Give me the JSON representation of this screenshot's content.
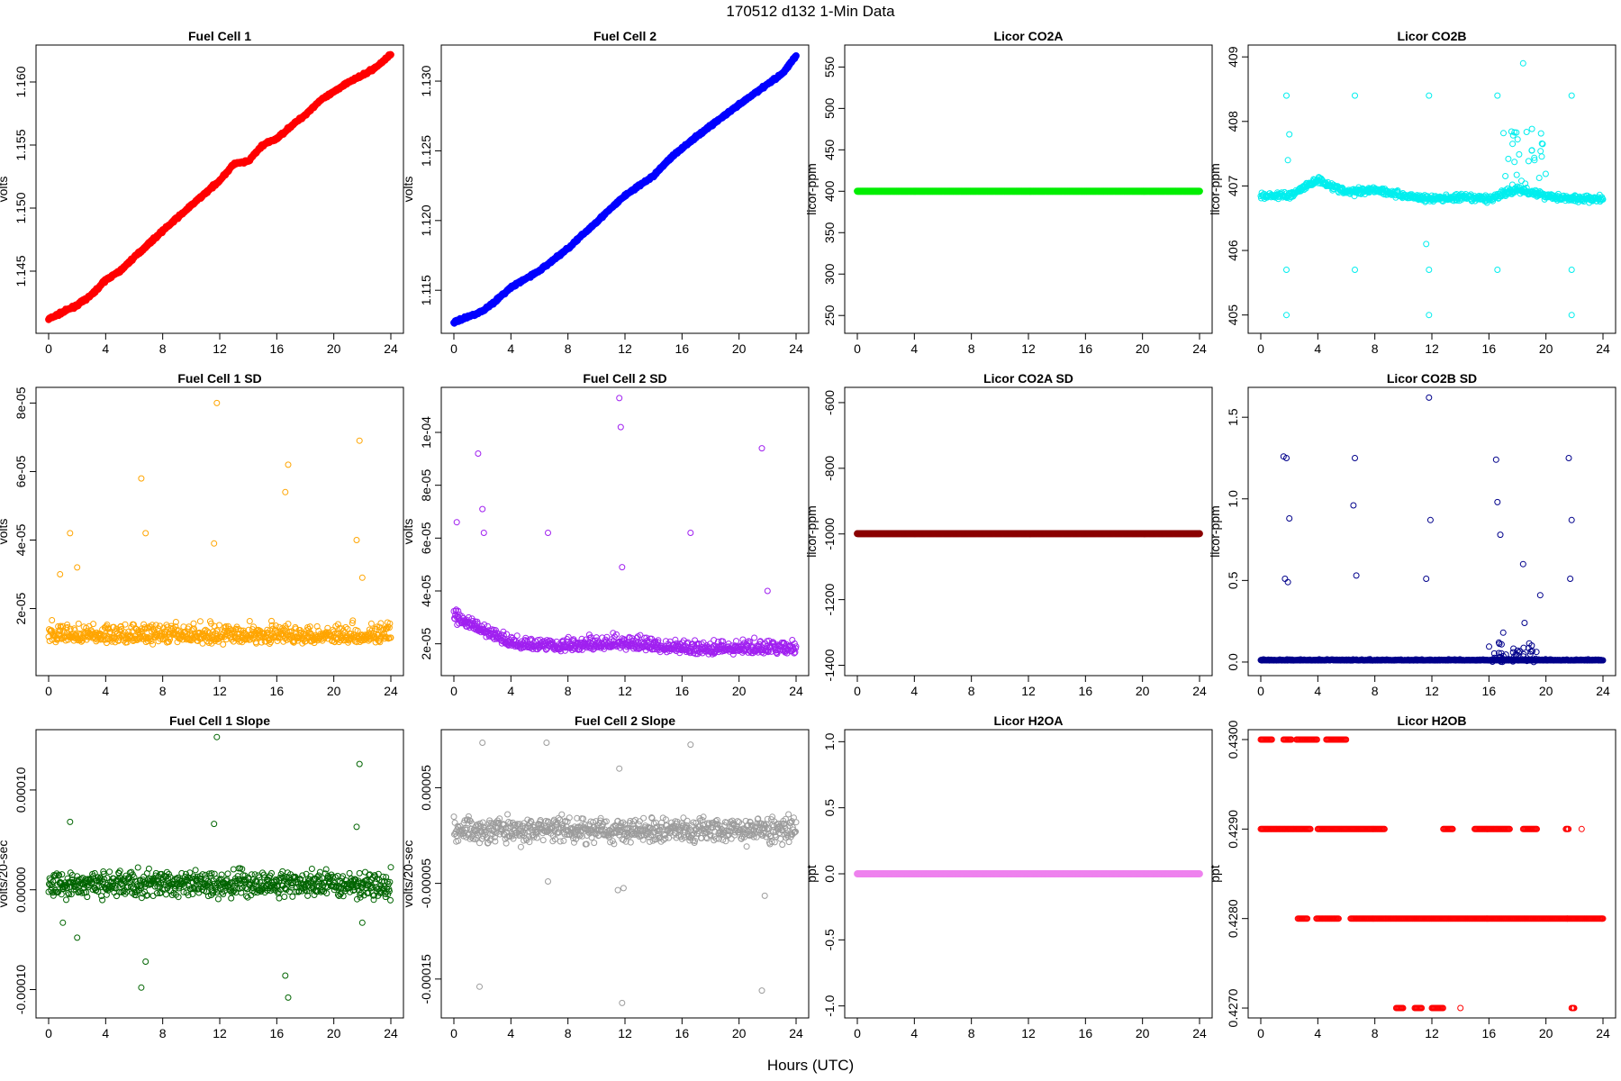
{
  "suptitle": "170512   d132   1-Min Data",
  "xlabel": "Hours (UTC)",
  "chart_data": [
    {
      "type": "scatter",
      "title": "Fuel Cell 1",
      "ylabel": "volts",
      "color": "#ff0000",
      "marker": "filled",
      "xlim": [
        0,
        24
      ],
      "ylim": [
        1.1405,
        1.1625
      ],
      "xticks": [
        0,
        4,
        8,
        12,
        16,
        20,
        24
      ],
      "yticks": [
        1.145,
        1.15,
        1.155,
        1.16
      ],
      "ytick_labels": [
        "1.145",
        "1.150",
        "1.155",
        "1.160"
      ],
      "x": [
        0,
        2,
        3,
        4,
        5,
        6,
        8,
        10,
        12,
        13,
        14,
        15,
        16,
        17,
        18,
        19,
        20,
        21,
        22,
        23,
        24
      ],
      "y": [
        1.1412,
        1.1423,
        1.1431,
        1.1443,
        1.145,
        1.1461,
        1.1482,
        1.1502,
        1.1522,
        1.1535,
        1.1537,
        1.155,
        1.1555,
        1.1565,
        1.1574,
        1.1585,
        1.1592,
        1.16,
        1.1605,
        1.1612,
        1.1622
      ]
    },
    {
      "type": "scatter",
      "title": "Fuel Cell 2",
      "ylabel": "volts",
      "color": "#0000ff",
      "marker": "filled",
      "xlim": [
        0,
        24
      ],
      "ylim": [
        1.1123,
        1.1322
      ],
      "xticks": [
        0,
        4,
        8,
        12,
        16,
        20,
        24
      ],
      "yticks": [
        1.115,
        1.12,
        1.125,
        1.13
      ],
      "ytick_labels": [
        "1.115",
        "1.120",
        "1.125",
        "1.130"
      ],
      "x": [
        0,
        2,
        3,
        4,
        6,
        8,
        10,
        12,
        14,
        15,
        16,
        18,
        20,
        22,
        23,
        24
      ],
      "y": [
        1.1127,
        1.1135,
        1.1143,
        1.1152,
        1.1164,
        1.118,
        1.1199,
        1.1218,
        1.1232,
        1.1243,
        1.1252,
        1.1268,
        1.1283,
        1.1298,
        1.1305,
        1.1318
      ]
    },
    {
      "type": "scatter",
      "title": "Licor CO2A",
      "ylabel": "licor-ppm",
      "color": "#00ee00",
      "marker": "filled",
      "xlim": [
        0,
        24
      ],
      "ylim": [
        235,
        570
      ],
      "xticks": [
        0,
        4,
        8,
        12,
        16,
        20,
        24
      ],
      "yticks": [
        250,
        300,
        350,
        400,
        450,
        500,
        550
      ],
      "ytick_labels": [
        "250",
        "300",
        "350",
        "400",
        "450",
        "500",
        "550"
      ],
      "x": [
        0,
        24
      ],
      "y": [
        400,
        400
      ]
    },
    {
      "type": "scatter",
      "title": "Licor CO2B",
      "ylabel": "licor-ppm",
      "color": "#00eeee",
      "marker": "open",
      "xlim": [
        0,
        24
      ],
      "ylim": [
        404.8,
        409.1
      ],
      "xticks": [
        0,
        4,
        8,
        12,
        16,
        20,
        24
      ],
      "yticks": [
        405,
        406,
        407,
        408,
        409
      ],
      "ytick_labels": [
        "405",
        "406",
        "407",
        "408",
        "409"
      ],
      "x": [
        0,
        2,
        4,
        6,
        8,
        10,
        12,
        14,
        16,
        18,
        20,
        22,
        24
      ],
      "y": [
        406.85,
        406.85,
        407.1,
        406.9,
        406.95,
        406.85,
        406.8,
        406.82,
        406.8,
        406.95,
        406.85,
        406.8,
        406.8
      ],
      "outliers": {
        "x": [
          1.8,
          1.8,
          1.8,
          6.6,
          6.6,
          11.8,
          11.8,
          11.8,
          16.6,
          16.6,
          18.4,
          21.8,
          21.8,
          21.8,
          1.9,
          2.0,
          11.6,
          19.2
        ],
        "y": [
          408.4,
          405.7,
          405.0,
          408.4,
          405.7,
          408.4,
          405.7,
          405.0,
          408.4,
          405.7,
          408.9,
          408.4,
          405.7,
          405.0,
          407.4,
          407.8,
          406.1,
          407.4
        ]
      }
    },
    {
      "type": "scatter",
      "title": "Fuel Cell 1 SD",
      "ylabel": "volts",
      "color": "#ffa500",
      "marker": "open",
      "xlim": [
        0,
        24
      ],
      "ylim": [
        2e-06,
        8.3e-05
      ],
      "xticks": [
        0,
        4,
        8,
        12,
        16,
        20,
        24
      ],
      "yticks": [
        2e-05,
        4e-05,
        6e-05,
        8e-05
      ],
      "ytick_labels": [
        "2e-05",
        "4e-05",
        "6e-05",
        "8e-05"
      ],
      "x": [
        0,
        24
      ],
      "y": [
        1.2e-05,
        1.2e-05
      ],
      "outliers": {
        "x": [
          0.8,
          1.5,
          2.0,
          6.5,
          6.8,
          11.6,
          11.8,
          16.6,
          16.8,
          21.6,
          21.8,
          22.0
        ],
        "y": [
          3e-05,
          4.2e-05,
          3.2e-05,
          5.8e-05,
          4.2e-05,
          3.9e-05,
          8e-05,
          5.4e-05,
          6.2e-05,
          4e-05,
          6.9e-05,
          2.9e-05
        ]
      }
    },
    {
      "type": "scatter",
      "title": "Fuel Cell 2 SD",
      "ylabel": "volts",
      "color": "#a020f0",
      "marker": "open",
      "xlim": [
        0,
        24
      ],
      "ylim": [
        1e-05,
        0.000115
      ],
      "xticks": [
        0,
        4,
        8,
        12,
        16,
        20,
        24
      ],
      "yticks": [
        2e-05,
        4e-05,
        6e-05,
        8e-05,
        0.0001
      ],
      "ytick_labels": [
        "2e-05",
        "4e-05",
        "6e-05",
        "8e-05",
        "1e-04"
      ],
      "x": [
        0,
        2,
        4,
        8,
        12,
        16,
        20,
        24
      ],
      "y": [
        3e-05,
        2.5e-05,
        2e-05,
        1.9e-05,
        2e-05,
        1.8e-05,
        1.8e-05,
        1.8e-05
      ],
      "outliers": {
        "x": [
          0.2,
          1.7,
          2.0,
          2.1,
          6.6,
          11.6,
          11.7,
          11.8,
          16.6,
          21.6,
          22.0
        ],
        "y": [
          6.6e-05,
          9.2e-05,
          7.1e-05,
          6.2e-05,
          6.2e-05,
          0.000113,
          0.000102,
          4.9e-05,
          6.2e-05,
          9.4e-05,
          4e-05
        ]
      }
    },
    {
      "type": "scatter",
      "title": "Licor CO2A SD",
      "ylabel": "licor-ppm",
      "color": "#8b0000",
      "marker": "filled",
      "xlim": [
        0,
        24
      ],
      "ylim": [
        -1415,
        -570
      ],
      "xticks": [
        0,
        4,
        8,
        12,
        16,
        20,
        24
      ],
      "yticks": [
        -1400,
        -1200,
        -1000,
        -800,
        -600
      ],
      "ytick_labels": [
        "-1400",
        "-1200",
        "-1000",
        "-800",
        "-600"
      ],
      "x": [
        0,
        24
      ],
      "y": [
        -999,
        -999
      ]
    },
    {
      "type": "scatter",
      "title": "Licor CO2B SD",
      "ylabel": "licor-ppm",
      "color": "#00008b",
      "marker": "open",
      "xlim": [
        0,
        24
      ],
      "ylim": [
        -0.05,
        1.65
      ],
      "xticks": [
        0,
        4,
        8,
        12,
        16,
        20,
        24
      ],
      "yticks": [
        0.0,
        0.5,
        1.0,
        1.5
      ],
      "ytick_labels": [
        "0.0",
        "0.5",
        "1.0",
        "1.5"
      ],
      "x": [
        0,
        24
      ],
      "y": [
        0.01,
        0.01
      ],
      "outliers": {
        "x": [
          1.6,
          1.8,
          2.0,
          1.7,
          1.9,
          6.6,
          6.5,
          6.7,
          11.8,
          11.9,
          11.6,
          16.5,
          16.6,
          16.8,
          18.4,
          18.5,
          19.6,
          21.6,
          21.8,
          21.7,
          17.0
        ],
        "y": [
          1.26,
          1.25,
          0.88,
          0.51,
          0.49,
          1.25,
          0.96,
          0.53,
          1.62,
          0.87,
          0.51,
          1.24,
          0.98,
          0.78,
          0.6,
          0.24,
          0.41,
          1.25,
          0.87,
          0.51,
          0.18
        ]
      }
    },
    {
      "type": "scatter",
      "title": "Fuel Cell 1 Slope",
      "ylabel": "volts/20-sec",
      "color": "#006400",
      "marker": "open",
      "xlim": [
        0,
        24
      ],
      "ylim": [
        -0.000123,
        0.000155
      ],
      "xticks": [
        0,
        4,
        8,
        12,
        16,
        20,
        24
      ],
      "yticks": [
        -0.0001,
        0.0,
        0.0001
      ],
      "ytick_labels": [
        "-0.00010",
        "0.00000",
        "0.00010"
      ],
      "x": [
        0,
        24
      ],
      "y": [
        5.8e-06,
        5.8e-06
      ],
      "outliers": {
        "x": [
          1.5,
          2.0,
          6.5,
          6.8,
          11.6,
          11.8,
          16.6,
          16.8,
          21.6,
          21.8,
          22.0,
          1.0
        ],
        "y": [
          6.8e-05,
          -4.8e-05,
          -9.8e-05,
          -7.2e-05,
          6.6e-05,
          0.000153,
          -8.6e-05,
          -0.000108,
          6.3e-05,
          0.000126,
          -3.3e-05,
          -3.3e-05
        ]
      }
    },
    {
      "type": "scatter",
      "title": "Fuel Cell 2 Slope",
      "ylabel": "volts/20-sec",
      "color": "#9c9c9c",
      "marker": "open",
      "xlim": [
        0,
        24
      ],
      "ylim": [
        -0.000185,
        0.000105
      ],
      "xticks": [
        0,
        4,
        8,
        12,
        16,
        20,
        24
      ],
      "yticks": [
        -0.00015,
        -5e-05,
        5e-05
      ],
      "ytick_labels": [
        "-0.00015",
        "-0.00005",
        "0.00005"
      ],
      "x": [
        0,
        24
      ],
      "y": [
        5.8e-06,
        5.8e-06
      ],
      "outliers": {
        "x": [
          1.8,
          2.0,
          6.5,
          6.6,
          11.6,
          11.8,
          11.9,
          16.6,
          21.6,
          21.8,
          11.5
        ],
        "y": [
          -0.000158,
          9.7e-05,
          9.7e-05,
          -4.8e-05,
          7e-05,
          -0.000175,
          -5.5e-05,
          9.5e-05,
          -0.000162,
          -6.3e-05,
          -5.7e-05
        ]
      }
    },
    {
      "type": "scatter",
      "title": "Licor H2OA",
      "ylabel": "ppt",
      "color": "#ee82ee",
      "marker": "filled",
      "xlim": [
        0,
        24
      ],
      "ylim": [
        -1.05,
        1.05
      ],
      "xticks": [
        0,
        4,
        8,
        12,
        16,
        20,
        24
      ],
      "yticks": [
        -1.0,
        -0.5,
        0.0,
        0.5,
        1.0
      ],
      "ytick_labels": [
        "-1.0",
        "-0.5",
        "0.0",
        "0.5",
        "1.0"
      ],
      "x": [
        0,
        24
      ],
      "y": [
        0,
        0
      ]
    },
    {
      "type": "scatter",
      "title": "Licor H2OB",
      "ylabel": "ppt",
      "color": "#ff0000",
      "marker": "open",
      "xlim": [
        0,
        24
      ],
      "ylim": [
        0.42695,
        0.43005
      ],
      "xticks": [
        0,
        4,
        8,
        12,
        16,
        20,
        24
      ],
      "yticks": [
        0.427,
        0.428,
        0.429,
        0.43
      ],
      "ytick_labels": [
        "0.4270",
        "0.4280",
        "0.4290",
        "0.4300"
      ],
      "levels": [
        {
          "y": 0.43,
          "ranges": [
            [
              0.0,
              0.8
            ],
            [
              1.6,
              2.2
            ],
            [
              2.5,
              4.0
            ],
            [
              4.6,
              6.0
            ]
          ]
        },
        {
          "y": 0.429,
          "ranges": [
            [
              0.0,
              3.5
            ],
            [
              4.0,
              8.7
            ],
            [
              12.8,
              13.5
            ],
            [
              15.0,
              17.5
            ],
            [
              18.4,
              19.4
            ],
            [
              21.4,
              21.6
            ]
          ]
        },
        {
          "y": 0.428,
          "ranges": [
            [
              2.6,
              3.3
            ],
            [
              3.9,
              5.5
            ],
            [
              6.3,
              24.0
            ]
          ]
        },
        {
          "y": 0.427,
          "ranges": [
            [
              9.5,
              10.0
            ],
            [
              10.8,
              11.3
            ],
            [
              12.0,
              12.8
            ],
            [
              21.8,
              22.0
            ]
          ]
        }
      ],
      "extra_points": {
        "x": [
          14.0,
          22.5,
          21.5
        ],
        "y": [
          0.427,
          0.429,
          0.428
        ]
      }
    }
  ]
}
